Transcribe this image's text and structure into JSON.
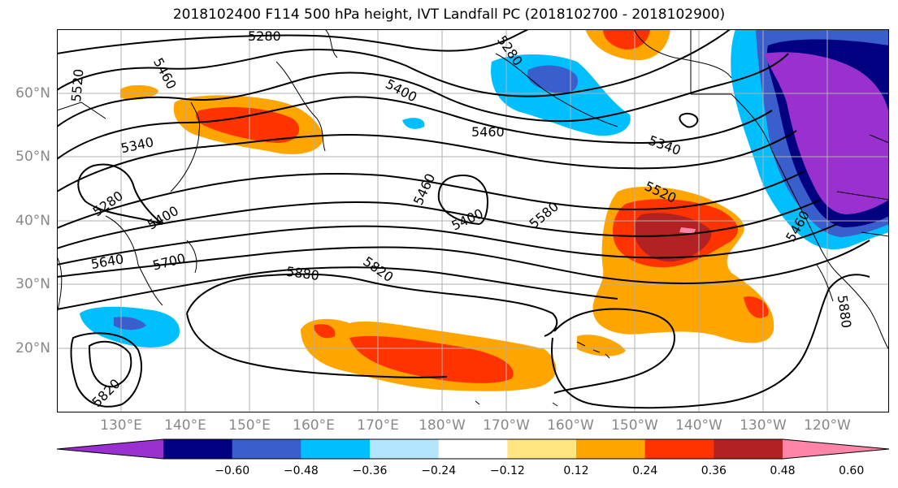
{
  "title": "2018102400 F114 500 hPa height, IVT Landfall PC (2018102700 - 2018102900)",
  "lat_labels": [
    "60°N",
    "50°N",
    "40°N",
    "30°N",
    "20°N"
  ],
  "lon_labels": [
    "130°E",
    "140°E",
    "150°E",
    "160°E",
    "170°E",
    "180°W",
    "170°W",
    "160°W",
    "150°W",
    "140°W",
    "130°W",
    "120°W"
  ],
  "contour_labels": [
    "5280",
    "5520",
    "5460",
    "5400",
    "5280",
    "5340",
    "5340",
    "5280",
    "5400",
    "5460",
    "5460",
    "5400",
    "5580",
    "5520",
    "5640",
    "5700",
    "5880",
    "5820",
    "5880",
    "5820",
    "5460"
  ],
  "colorbar": {
    "tick_labels": [
      "−0.60",
      "−0.48",
      "−0.36",
      "−0.24",
      "−0.12",
      "0.12",
      "0.24",
      "0.36",
      "0.48",
      "0.60"
    ],
    "colors": [
      "#9b30d0",
      "#000080",
      "#3a5fcd",
      "#00bfff",
      "#b3e5ff",
      "#ffffff",
      "#ffe680",
      "#ffa500",
      "#ff3300",
      "#b22222",
      "#ff85a8"
    ]
  }
}
